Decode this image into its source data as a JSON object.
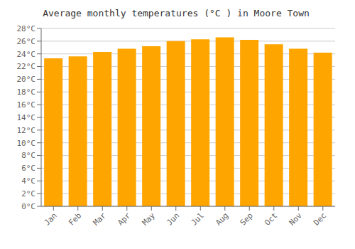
{
  "chart_data": {
    "type": "bar",
    "title": "Average monthly temperatures (°C ) in Moore Town",
    "categories": [
      "Jan",
      "Feb",
      "Mar",
      "Apr",
      "May",
      "Jun",
      "Jul",
      "Aug",
      "Sep",
      "Oct",
      "Nov",
      "Dec"
    ],
    "values": [
      23.3,
      23.6,
      24.3,
      24.8,
      25.2,
      26.0,
      26.3,
      26.6,
      26.2,
      25.5,
      24.8,
      24.2
    ],
    "color": "#FFA500",
    "ylim": [
      0,
      28
    ],
    "yticks": [
      {
        "value": 0,
        "label": "0°C"
      },
      {
        "value": 2,
        "label": "2°C"
      },
      {
        "value": 4,
        "label": "4°C"
      },
      {
        "value": 6,
        "label": "6°C"
      },
      {
        "value": 8,
        "label": "8°C"
      },
      {
        "value": 10,
        "label": "10°C"
      },
      {
        "value": 12,
        "label": "12°C"
      },
      {
        "value": 14,
        "label": "14°C"
      },
      {
        "value": 16,
        "label": "16°C"
      },
      {
        "value": 18,
        "label": "18°C"
      },
      {
        "value": 20,
        "label": "20°C"
      },
      {
        "value": 22,
        "label": "22°C"
      },
      {
        "value": 24,
        "label": "24°C"
      },
      {
        "value": 26,
        "label": "26°C"
      },
      {
        "value": 28,
        "label": "28°C"
      }
    ],
    "grid": true
  }
}
